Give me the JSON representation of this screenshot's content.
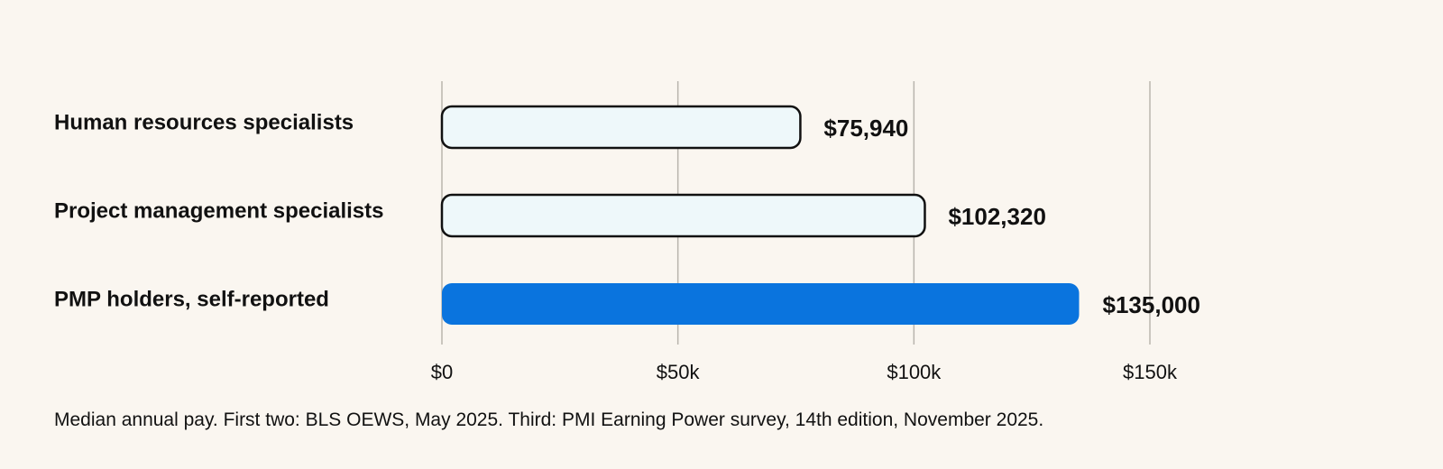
{
  "chart_data": {
    "type": "bar",
    "orientation": "horizontal",
    "categories": [
      "Human resources specialists",
      "Project management specialists",
      "PMP holders, self-reported"
    ],
    "values": [
      75940,
      102320,
      135000
    ],
    "value_labels": [
      "$75,940",
      "$102,320",
      "$135,000"
    ],
    "xlim": [
      0,
      150000
    ],
    "x_ticks": [
      0,
      50000,
      100000,
      150000
    ],
    "x_tick_labels": [
      "$0",
      "$50k",
      "$100k",
      "$150k"
    ],
    "grid": "vertical",
    "title": "",
    "xlabel": "",
    "ylabel": "",
    "colors": {
      "outlined_fill": "#eef8fa",
      "outlined_stroke": "#111111",
      "highlight_fill": "#0a74de"
    },
    "bar_styles": [
      "outlined",
      "outlined",
      "highlight"
    ]
  },
  "footnote": "Median annual pay. First two: BLS OEWS, May 2025. Third: PMI Earning Power survey, 14th edition, November 2025."
}
